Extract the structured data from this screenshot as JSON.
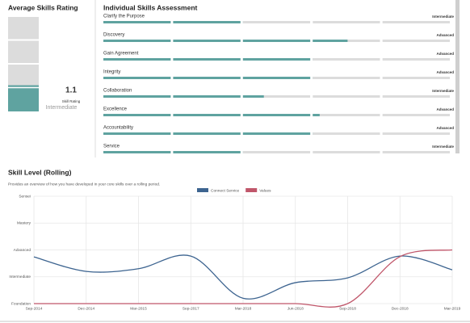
{
  "left_panel": {
    "title": "Average Skills Rating",
    "rating": 1.1,
    "ylim": [
      0,
      4
    ],
    "caption": "Skill Rating",
    "level": "Intermediate"
  },
  "skills_panel": {
    "title": "Individual Skills Assessment",
    "xlim": [
      0,
      5
    ],
    "items": [
      {
        "name": "Clarify the Purpose",
        "level": "Intermediate",
        "value": 2
      },
      {
        "name": "Discovery",
        "level": "Advanced",
        "value": 3.5
      },
      {
        "name": "Gain Agreement",
        "level": "Advanced",
        "value": 3
      },
      {
        "name": "Integrity",
        "level": "Advanced",
        "value": 3
      },
      {
        "name": "Collaboration",
        "level": "Intermediate",
        "value": 2.3
      },
      {
        "name": "Excellence",
        "level": "Advanced",
        "value": 3.1
      },
      {
        "name": "Accountability",
        "level": "Advanced",
        "value": 3
      },
      {
        "name": "Service",
        "level": "Intermediate",
        "value": 2
      }
    ]
  },
  "chart_data": {
    "type": "line",
    "title": "Skill Level (Rolling)",
    "subtitle": "Provides an overview of how you have developed in your core skills over a rolling period.",
    "categories": [
      "Sep-2014",
      "Dec-2014",
      "Mar-2015",
      "Sep-2017",
      "Mar-2018",
      "Jun-2018",
      "Sep-2018",
      "Dec-2018",
      "Mar-2019"
    ],
    "series": [
      {
        "name": "Connect Service",
        "color": "#3d6490",
        "values": [
          1.74,
          1.2,
          1.3,
          1.77,
          0.2,
          0.78,
          0.96,
          1.77,
          1.26
        ]
      },
      {
        "name": "Values",
        "color": "#c0566a",
        "values": [
          0,
          0,
          0,
          0,
          0,
          0,
          0,
          1.75,
          2
        ]
      }
    ],
    "ylim": [
      0,
      4
    ],
    "yticks": [
      {
        "value": 0,
        "label": "Foundation"
      },
      {
        "value": 1,
        "label": "Intermediate"
      },
      {
        "value": 2,
        "label": "Advanced"
      },
      {
        "value": 3,
        "label": "Mastery"
      },
      {
        "value": 4,
        "label": "Sensei"
      }
    ],
    "grid": true
  }
}
